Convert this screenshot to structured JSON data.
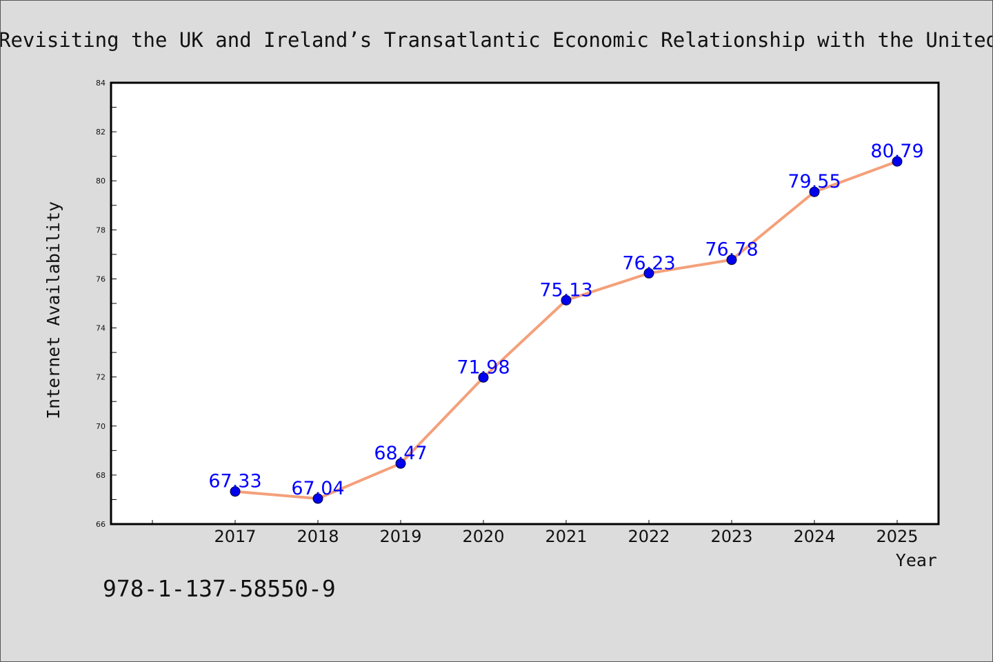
{
  "chart_data": {
    "type": "line",
    "title": "Revisiting the UK and Ireland’s Transatlantic Economic Relationship with the United States",
    "xlabel": "Year",
    "ylabel": "Internet Availability",
    "categories": [
      "2017",
      "2018",
      "2019",
      "2020",
      "2021",
      "2022",
      "2023",
      "2024",
      "2025"
    ],
    "series": [
      {
        "values": [
          67.33,
          67.04,
          68.47,
          71.98,
          75.13,
          76.23,
          76.78,
          79.55,
          80.79
        ],
        "data_labels": [
          "67.33",
          "67.04",
          "68.47",
          "71.98",
          "75.13",
          "76.23",
          "76.78",
          "79.55",
          "80.79"
        ],
        "line_color": "#f4a07a",
        "marker_color": "#0000ee"
      }
    ],
    "ylim": [
      66,
      84
    ],
    "yticks": [
      "66",
      "68",
      "70",
      "72",
      "74",
      "76",
      "78",
      "80",
      "82",
      "84"
    ],
    "grid": false,
    "legend": "none",
    "label_color": "#0000ff"
  },
  "footer": {
    "isbn": "978-1-137-58550-9"
  }
}
